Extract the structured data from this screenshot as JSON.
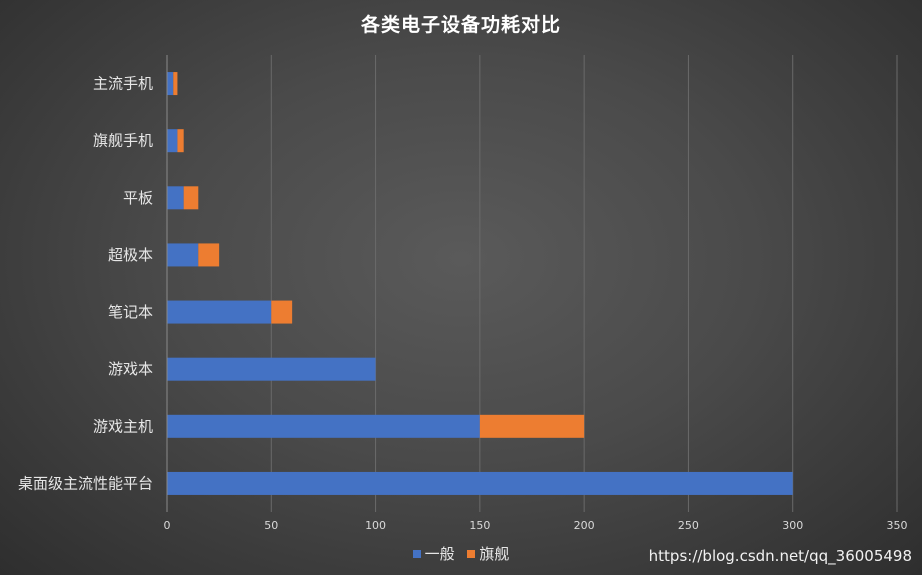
{
  "chart_data": {
    "type": "bar",
    "orientation": "horizontal",
    "stacked": true,
    "title": "各类电子设备功耗对比",
    "categories": [
      "主流手机",
      "旗舰手机",
      "平板",
      "超极本",
      "笔记本",
      "游戏本",
      "游戏主机",
      "桌面级主流性能平台"
    ],
    "series": [
      {
        "name": "一般",
        "color": "#4472c4",
        "values": [
          3,
          5,
          8,
          15,
          50,
          100,
          150,
          300
        ]
      },
      {
        "name": "旗舰",
        "color": "#ed7d31",
        "values": [
          2,
          3,
          7,
          10,
          10,
          0,
          50,
          0
        ]
      }
    ],
    "xlim": [
      0,
      350
    ],
    "xticks": [
      0,
      50,
      100,
      150,
      200,
      250,
      300,
      350
    ],
    "grid": "vertical",
    "legend": "bottom"
  },
  "watermark": "https://blog.csdn.net/qq_36005498"
}
